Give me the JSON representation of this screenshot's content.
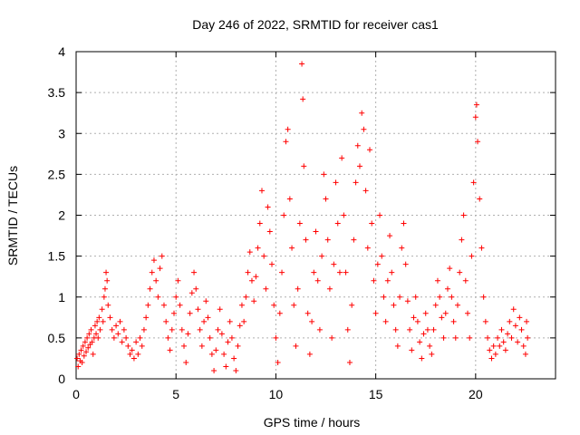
{
  "chart_data": {
    "type": "scatter",
    "title": "Day 246 of 2022, SRMTID for receiver cas1",
    "xlabel": "GPS time / hours",
    "ylabel": "SRMTID / TECUs",
    "xlim": [
      0,
      24
    ],
    "ylim": [
      0,
      4
    ],
    "x_ticks": [
      "0",
      "5",
      "10",
      "15",
      "20"
    ],
    "y_ticks": [
      "0",
      "0.5",
      "1",
      "1.5",
      "2",
      "2.5",
      "3",
      "3.5",
      "4"
    ],
    "grid": true,
    "marker": "+",
    "series": [
      {
        "name": "cas1",
        "color": "#ff0000",
        "points": [
          [
            0.05,
            0.25
          ],
          [
            0.1,
            0.15
          ],
          [
            0.15,
            0.3
          ],
          [
            0.2,
            0.22
          ],
          [
            0.25,
            0.35
          ],
          [
            0.3,
            0.2
          ],
          [
            0.35,
            0.4
          ],
          [
            0.4,
            0.28
          ],
          [
            0.45,
            0.45
          ],
          [
            0.5,
            0.33
          ],
          [
            0.55,
            0.5
          ],
          [
            0.6,
            0.38
          ],
          [
            0.65,
            0.55
          ],
          [
            0.7,
            0.42
          ],
          [
            0.75,
            0.6
          ],
          [
            0.8,
            0.45
          ],
          [
            0.85,
            0.3
          ],
          [
            0.9,
            0.5
          ],
          [
            0.95,
            0.65
          ],
          [
            1.0,
            0.55
          ],
          [
            1.05,
            0.7
          ],
          [
            1.1,
            0.5
          ],
          [
            1.15,
            0.75
          ],
          [
            1.2,
            0.6
          ],
          [
            1.3,
            0.85
          ],
          [
            1.35,
            0.7
          ],
          [
            1.4,
            1.0
          ],
          [
            1.45,
            1.1
          ],
          [
            1.5,
            1.3
          ],
          [
            1.55,
            1.2
          ],
          [
            1.6,
            0.9
          ],
          [
            1.7,
            0.75
          ],
          [
            1.8,
            0.6
          ],
          [
            1.9,
            0.5
          ],
          [
            2.0,
            0.65
          ],
          [
            2.1,
            0.55
          ],
          [
            2.2,
            0.7
          ],
          [
            2.3,
            0.45
          ],
          [
            2.4,
            0.6
          ],
          [
            2.5,
            0.5
          ],
          [
            2.6,
            0.4
          ],
          [
            2.7,
            0.3
          ],
          [
            2.8,
            0.35
          ],
          [
            2.9,
            0.25
          ],
          [
            3.0,
            0.45
          ],
          [
            3.1,
            0.3
          ],
          [
            3.2,
            0.5
          ],
          [
            3.3,
            0.4
          ],
          [
            3.4,
            0.6
          ],
          [
            3.5,
            0.75
          ],
          [
            3.6,
            0.9
          ],
          [
            3.7,
            1.1
          ],
          [
            3.8,
            1.3
          ],
          [
            3.9,
            1.45
          ],
          [
            4.0,
            1.2
          ],
          [
            4.1,
            1.0
          ],
          [
            4.2,
            1.35
          ],
          [
            4.3,
            1.5
          ],
          [
            4.4,
            0.9
          ],
          [
            4.5,
            0.7
          ],
          [
            4.6,
            0.5
          ],
          [
            4.7,
            0.35
          ],
          [
            4.8,
            0.6
          ],
          [
            4.9,
            0.8
          ],
          [
            5.0,
            1.0
          ],
          [
            5.1,
            1.2
          ],
          [
            5.2,
            0.9
          ],
          [
            5.3,
            0.6
          ],
          [
            5.4,
            0.4
          ],
          [
            5.5,
            0.2
          ],
          [
            5.6,
            0.55
          ],
          [
            5.7,
            0.8
          ],
          [
            5.8,
            1.05
          ],
          [
            5.9,
            1.3
          ],
          [
            6.0,
            1.1
          ],
          [
            6.1,
            0.85
          ],
          [
            6.2,
            0.6
          ],
          [
            6.3,
            0.4
          ],
          [
            6.4,
            0.7
          ],
          [
            6.5,
            0.95
          ],
          [
            6.6,
            0.75
          ],
          [
            6.7,
            0.5
          ],
          [
            6.8,
            0.3
          ],
          [
            6.9,
            0.1
          ],
          [
            7.0,
            0.35
          ],
          [
            7.1,
            0.6
          ],
          [
            7.2,
            0.85
          ],
          [
            7.3,
            0.55
          ],
          [
            7.4,
            0.3
          ],
          [
            7.5,
            0.15
          ],
          [
            7.6,
            0.45
          ],
          [
            7.7,
            0.7
          ],
          [
            7.8,
            0.5
          ],
          [
            7.9,
            0.25
          ],
          [
            8.0,
            0.1
          ],
          [
            8.1,
            0.4
          ],
          [
            8.2,
            0.65
          ],
          [
            8.3,
            0.9
          ],
          [
            8.4,
            0.7
          ],
          [
            8.5,
            1.0
          ],
          [
            8.6,
            1.3
          ],
          [
            8.7,
            1.55
          ],
          [
            8.8,
            1.2
          ],
          [
            8.9,
            0.95
          ],
          [
            9.0,
            1.25
          ],
          [
            9.1,
            1.6
          ],
          [
            9.2,
            1.9
          ],
          [
            9.3,
            2.3
          ],
          [
            9.4,
            1.5
          ],
          [
            9.5,
            1.1
          ],
          [
            9.6,
            2.1
          ],
          [
            9.7,
            1.8
          ],
          [
            9.8,
            1.4
          ],
          [
            9.9,
            0.9
          ],
          [
            10.0,
            0.5
          ],
          [
            10.1,
            0.2
          ],
          [
            10.2,
            0.8
          ],
          [
            10.3,
            1.3
          ],
          [
            10.4,
            2.0
          ],
          [
            10.5,
            2.9
          ],
          [
            10.6,
            3.05
          ],
          [
            10.7,
            2.2
          ],
          [
            10.8,
            1.6
          ],
          [
            10.9,
            0.9
          ],
          [
            11.0,
            0.4
          ],
          [
            11.1,
            1.1
          ],
          [
            11.2,
            1.9
          ],
          [
            11.3,
            3.85
          ],
          [
            11.35,
            3.42
          ],
          [
            11.4,
            2.6
          ],
          [
            11.5,
            1.7
          ],
          [
            11.6,
            0.8
          ],
          [
            11.7,
            0.3
          ],
          [
            11.8,
            0.7
          ],
          [
            11.9,
            1.3
          ],
          [
            12.0,
            1.8
          ],
          [
            12.1,
            1.2
          ],
          [
            12.2,
            0.6
          ],
          [
            12.3,
            1.5
          ],
          [
            12.4,
            2.5
          ],
          [
            12.5,
            2.2
          ],
          [
            12.6,
            1.7
          ],
          [
            12.7,
            1.1
          ],
          [
            12.8,
            0.5
          ],
          [
            12.9,
            1.4
          ],
          [
            13.0,
            2.4
          ],
          [
            13.1,
            1.9
          ],
          [
            13.2,
            1.3
          ],
          [
            13.3,
            2.7
          ],
          [
            13.4,
            2.0
          ],
          [
            13.5,
            1.3
          ],
          [
            13.6,
            0.6
          ],
          [
            13.7,
            0.2
          ],
          [
            13.8,
            0.9
          ],
          [
            13.9,
            1.7
          ],
          [
            14.0,
            2.4
          ],
          [
            14.1,
            2.85
          ],
          [
            14.2,
            2.6
          ],
          [
            14.3,
            3.25
          ],
          [
            14.4,
            3.05
          ],
          [
            14.5,
            2.3
          ],
          [
            14.6,
            1.6
          ],
          [
            14.7,
            2.8
          ],
          [
            14.8,
            1.9
          ],
          [
            14.9,
            1.2
          ],
          [
            15.0,
            0.8
          ],
          [
            15.1,
            1.4
          ],
          [
            15.2,
            2.0
          ],
          [
            15.3,
            1.5
          ],
          [
            15.4,
            1.0
          ],
          [
            15.5,
            0.7
          ],
          [
            15.6,
            1.2
          ],
          [
            15.7,
            1.75
          ],
          [
            15.8,
            1.3
          ],
          [
            15.9,
            0.9
          ],
          [
            16.0,
            0.6
          ],
          [
            16.1,
            0.4
          ],
          [
            16.2,
            1.0
          ],
          [
            16.3,
            1.6
          ],
          [
            16.4,
            1.9
          ],
          [
            16.5,
            1.4
          ],
          [
            16.6,
            0.95
          ],
          [
            16.7,
            0.6
          ],
          [
            16.8,
            0.35
          ],
          [
            16.9,
            0.75
          ],
          [
            17.0,
            1.0
          ],
          [
            17.1,
            0.7
          ],
          [
            17.2,
            0.45
          ],
          [
            17.3,
            0.25
          ],
          [
            17.4,
            0.55
          ],
          [
            17.5,
            0.8
          ],
          [
            17.6,
            0.6
          ],
          [
            17.7,
            0.4
          ],
          [
            17.8,
            0.3
          ],
          [
            17.9,
            0.6
          ],
          [
            18.0,
            0.9
          ],
          [
            18.1,
            1.2
          ],
          [
            18.2,
            1.0
          ],
          [
            18.3,
            0.75
          ],
          [
            18.4,
            0.5
          ],
          [
            18.5,
            0.8
          ],
          [
            18.6,
            1.1
          ],
          [
            18.7,
            1.35
          ],
          [
            18.8,
            1.0
          ],
          [
            18.9,
            0.7
          ],
          [
            19.0,
            0.5
          ],
          [
            19.1,
            0.9
          ],
          [
            19.2,
            1.3
          ],
          [
            19.3,
            1.7
          ],
          [
            19.4,
            2.0
          ],
          [
            19.5,
            1.2
          ],
          [
            19.6,
            0.8
          ],
          [
            19.7,
            0.5
          ],
          [
            19.8,
            1.5
          ],
          [
            19.9,
            2.4
          ],
          [
            20.0,
            3.2
          ],
          [
            20.05,
            3.35
          ],
          [
            20.1,
            2.9
          ],
          [
            20.2,
            2.2
          ],
          [
            20.3,
            1.6
          ],
          [
            20.4,
            1.0
          ],
          [
            20.5,
            0.7
          ],
          [
            20.6,
            0.5
          ],
          [
            20.7,
            0.35
          ],
          [
            20.8,
            0.25
          ],
          [
            20.9,
            0.4
          ],
          [
            21.0,
            0.3
          ],
          [
            21.1,
            0.5
          ],
          [
            21.2,
            0.4
          ],
          [
            21.3,
            0.6
          ],
          [
            21.4,
            0.45
          ],
          [
            21.5,
            0.35
          ],
          [
            21.6,
            0.55
          ],
          [
            21.7,
            0.7
          ],
          [
            21.8,
            0.5
          ],
          [
            21.9,
            0.85
          ],
          [
            22.0,
            0.65
          ],
          [
            22.1,
            0.45
          ],
          [
            22.2,
            0.75
          ],
          [
            22.3,
            0.6
          ],
          [
            22.4,
            0.4
          ],
          [
            22.5,
            0.3
          ],
          [
            22.55,
            0.7
          ],
          [
            22.6,
            0.5
          ]
        ]
      }
    ]
  }
}
